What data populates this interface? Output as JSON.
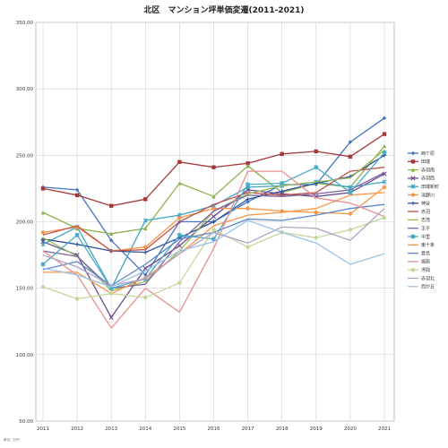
{
  "chart_data": {
    "type": "line",
    "title": "北区　マンション坪単価変遷(2011-2021)",
    "unit_note": "単位：万円",
    "x": [
      "2011",
      "2012",
      "2013",
      "2014",
      "2015",
      "2016",
      "2017",
      "2018",
      "2019",
      "2020",
      "2021"
    ],
    "ylim": [
      50,
      350
    ],
    "yticks": [
      "50.00",
      "100.00",
      "150.00",
      "200.00",
      "250.00",
      "300.00",
      "350.00"
    ],
    "grid": true,
    "legend_position": "right",
    "series": [
      {
        "name": "西ケ原",
        "color": "#4472c4",
        "marker": "diamond",
        "values": [
          226,
          224,
          186,
          160,
          200,
          200,
          215,
          228,
          228,
          260,
          278
        ]
      },
      {
        "name": "田端",
        "color": "#a33a3a",
        "marker": "square",
        "values": [
          225,
          220,
          212,
          217,
          245,
          241,
          244,
          251,
          253,
          249,
          266
        ]
      },
      {
        "name": "赤羽南",
        "color": "#8bb24a",
        "marker": "triangle",
        "values": [
          207,
          195,
          191,
          195,
          229,
          219,
          242,
          222,
          229,
          226,
          257
        ]
      },
      {
        "name": "赤羽西",
        "color": "#6a4c8c",
        "marker": "x",
        "values": [
          185,
          175,
          128,
          165,
          182,
          204,
          224,
          221,
          219,
          222,
          236
        ]
      },
      {
        "name": "田端新町",
        "color": "#3fa3c4",
        "marker": "star",
        "values": [
          183,
          196,
          150,
          201,
          205,
          212,
          226,
          227,
          230,
          226,
          230
        ]
      },
      {
        "name": "滝野川",
        "color": "#f79646",
        "marker": "circle",
        "values": [
          192,
          196,
          178,
          181,
          203,
          210,
          210,
          208,
          207,
          206,
          226
        ]
      },
      {
        "name": "神谷",
        "color": "#2f5597",
        "marker": "plus",
        "values": [
          187,
          183,
          178,
          177,
          188,
          200,
          217,
          223,
          229,
          234,
          250
        ]
      },
      {
        "name": "赤羽",
        "color": "#c0504d",
        "marker": "line",
        "values": [
          190,
          197,
          178,
          179,
          200,
          213,
          222,
          220,
          222,
          238,
          241
        ]
      },
      {
        "name": "志茂",
        "color": "#9bbb59",
        "marker": "line",
        "values": [
          188,
          174,
          148,
          155,
          178,
          208,
          221,
          227,
          230,
          233,
          254
        ]
      },
      {
        "name": "王子",
        "color": "#8064a2",
        "marker": "line",
        "values": [
          178,
          174,
          150,
          153,
          185,
          208,
          220,
          219,
          221,
          224,
          237
        ]
      },
      {
        "name": "中里",
        "color": "#4bacc6",
        "marker": "square",
        "values": [
          168,
          190,
          150,
          157,
          190,
          187,
          228,
          229,
          241,
          222,
          252
        ]
      },
      {
        "name": "東十条",
        "color": "#f79646",
        "marker": "line",
        "values": [
          162,
          162,
          146,
          158,
          176,
          197,
          205,
          207,
          210,
          220,
          222
        ]
      },
      {
        "name": "豊島",
        "color": "#5b87c9",
        "marker": "line",
        "values": [
          164,
          170,
          152,
          168,
          187,
          192,
          202,
          201,
          205,
          210,
          213
        ]
      },
      {
        "name": "堀船",
        "color": "#e6908f",
        "marker": "line",
        "values": [
          178,
          160,
          120,
          150,
          132,
          180,
          238,
          238,
          218,
          214,
          204
        ]
      },
      {
        "name": "浮間",
        "color": "#c4d79b",
        "marker": "circle",
        "values": [
          151,
          142,
          146,
          143,
          154,
          194,
          181,
          192,
          188,
          194,
          203
        ]
      },
      {
        "name": "赤羽北",
        "color": "#b1a0c7",
        "marker": "line",
        "values": [
          175,
          166,
          152,
          157,
          176,
          192,
          184,
          196,
          195,
          186,
          210
        ]
      },
      {
        "name": "西が丘",
        "color": "#9cc3e5",
        "marker": "line",
        "values": [
          165,
          160,
          151,
          163,
          178,
          185,
          201,
          192,
          184,
          168,
          176
        ]
      }
    ]
  }
}
